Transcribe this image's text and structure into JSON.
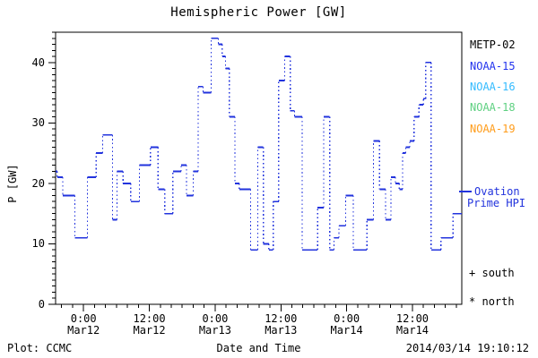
{
  "title": "Hemispheric Power [GW]",
  "footer": {
    "plot_credit": "Plot: CCMC",
    "timestamp": "2014/03/14 19:10:12"
  },
  "legend": {
    "satellites": [
      {
        "label": "METP-02",
        "color": "#000000"
      },
      {
        "label": "NOAA-15",
        "color": "#2233ee"
      },
      {
        "label": "NOAA-16",
        "color": "#33bbff"
      },
      {
        "label": "NOAA-18",
        "color": "#5ed081"
      },
      {
        "label": "NOAA-19",
        "color": "#ff9c1a"
      }
    ],
    "ovation": {
      "line1": "Ovation",
      "line2": "Prime HPI",
      "color": "#2233dd"
    },
    "markers": [
      {
        "glyph": "+",
        "label": "south"
      },
      {
        "glyph": "*",
        "label": "north"
      }
    ]
  },
  "chart_data": {
    "type": "line",
    "step": true,
    "title": "Hemispheric Power [GW]",
    "xlabel": "Date and Time",
    "ylabel": "P [GW]",
    "ylim": [
      0,
      45
    ],
    "y_minor_step": 1,
    "x_minor_step_hours": 2,
    "xlim_hours": [
      -5.1,
      69.0
    ],
    "x_epoch": "hours since 2014-03-12 00:00",
    "grid": false,
    "legend_position": "right-outside",
    "yticks": [
      0,
      10,
      20,
      30,
      40
    ],
    "xticks": [
      {
        "t": 0,
        "time": "0:00",
        "date": "Mar12"
      },
      {
        "t": 12,
        "time": "12:00",
        "date": "Mar12"
      },
      {
        "t": 24,
        "time": "0:00",
        "date": "Mar13"
      },
      {
        "t": 36,
        "time": "12:00",
        "date": "Mar13"
      },
      {
        "t": 48,
        "time": "0:00",
        "date": "Mar14"
      },
      {
        "t": 60,
        "time": "12:00",
        "date": "Mar14"
      }
    ],
    "series": [
      {
        "name": "Ovation Prime HPI",
        "color": "#2233dd",
        "style": "step: solid horizontals, dotted vertical risers",
        "points": [
          [
            -5.1,
            22
          ],
          [
            -4.8,
            21
          ],
          [
            -3.8,
            18
          ],
          [
            -1.6,
            11
          ],
          [
            0.7,
            21
          ],
          [
            2.3,
            25
          ],
          [
            3.5,
            28
          ],
          [
            5.3,
            14
          ],
          [
            6.1,
            22
          ],
          [
            7.2,
            20
          ],
          [
            8.6,
            17
          ],
          [
            10.2,
            23
          ],
          [
            12.2,
            26
          ],
          [
            13.6,
            19
          ],
          [
            14.8,
            15
          ],
          [
            16.3,
            22
          ],
          [
            17.8,
            23
          ],
          [
            18.8,
            18
          ],
          [
            20.0,
            22
          ],
          [
            20.9,
            36
          ],
          [
            21.8,
            35
          ],
          [
            23.3,
            44
          ],
          [
            24.6,
            43
          ],
          [
            25.3,
            41
          ],
          [
            25.9,
            39
          ],
          [
            26.6,
            31
          ],
          [
            27.6,
            20
          ],
          [
            28.4,
            19
          ],
          [
            30.5,
            9
          ],
          [
            31.8,
            26
          ],
          [
            32.8,
            10
          ],
          [
            33.8,
            9
          ],
          [
            34.6,
            17
          ],
          [
            35.6,
            37
          ],
          [
            36.7,
            41
          ],
          [
            37.7,
            32
          ],
          [
            38.5,
            31
          ],
          [
            39.9,
            9
          ],
          [
            42.7,
            16
          ],
          [
            43.8,
            31
          ],
          [
            44.9,
            9
          ],
          [
            45.7,
            11
          ],
          [
            46.6,
            13
          ],
          [
            47.8,
            18
          ],
          [
            49.2,
            9
          ],
          [
            51.7,
            14
          ],
          [
            52.9,
            27
          ],
          [
            54.0,
            19
          ],
          [
            55.1,
            14
          ],
          [
            56.1,
            21
          ],
          [
            56.9,
            20
          ],
          [
            57.6,
            19
          ],
          [
            58.2,
            25
          ],
          [
            58.8,
            26
          ],
          [
            59.5,
            27
          ],
          [
            60.3,
            31
          ],
          [
            61.2,
            33
          ],
          [
            62.0,
            34
          ],
          [
            62.4,
            40
          ],
          [
            63.4,
            9
          ],
          [
            65.2,
            11
          ],
          [
            67.4,
            15
          ],
          [
            69.0,
            15
          ]
        ]
      }
    ]
  }
}
